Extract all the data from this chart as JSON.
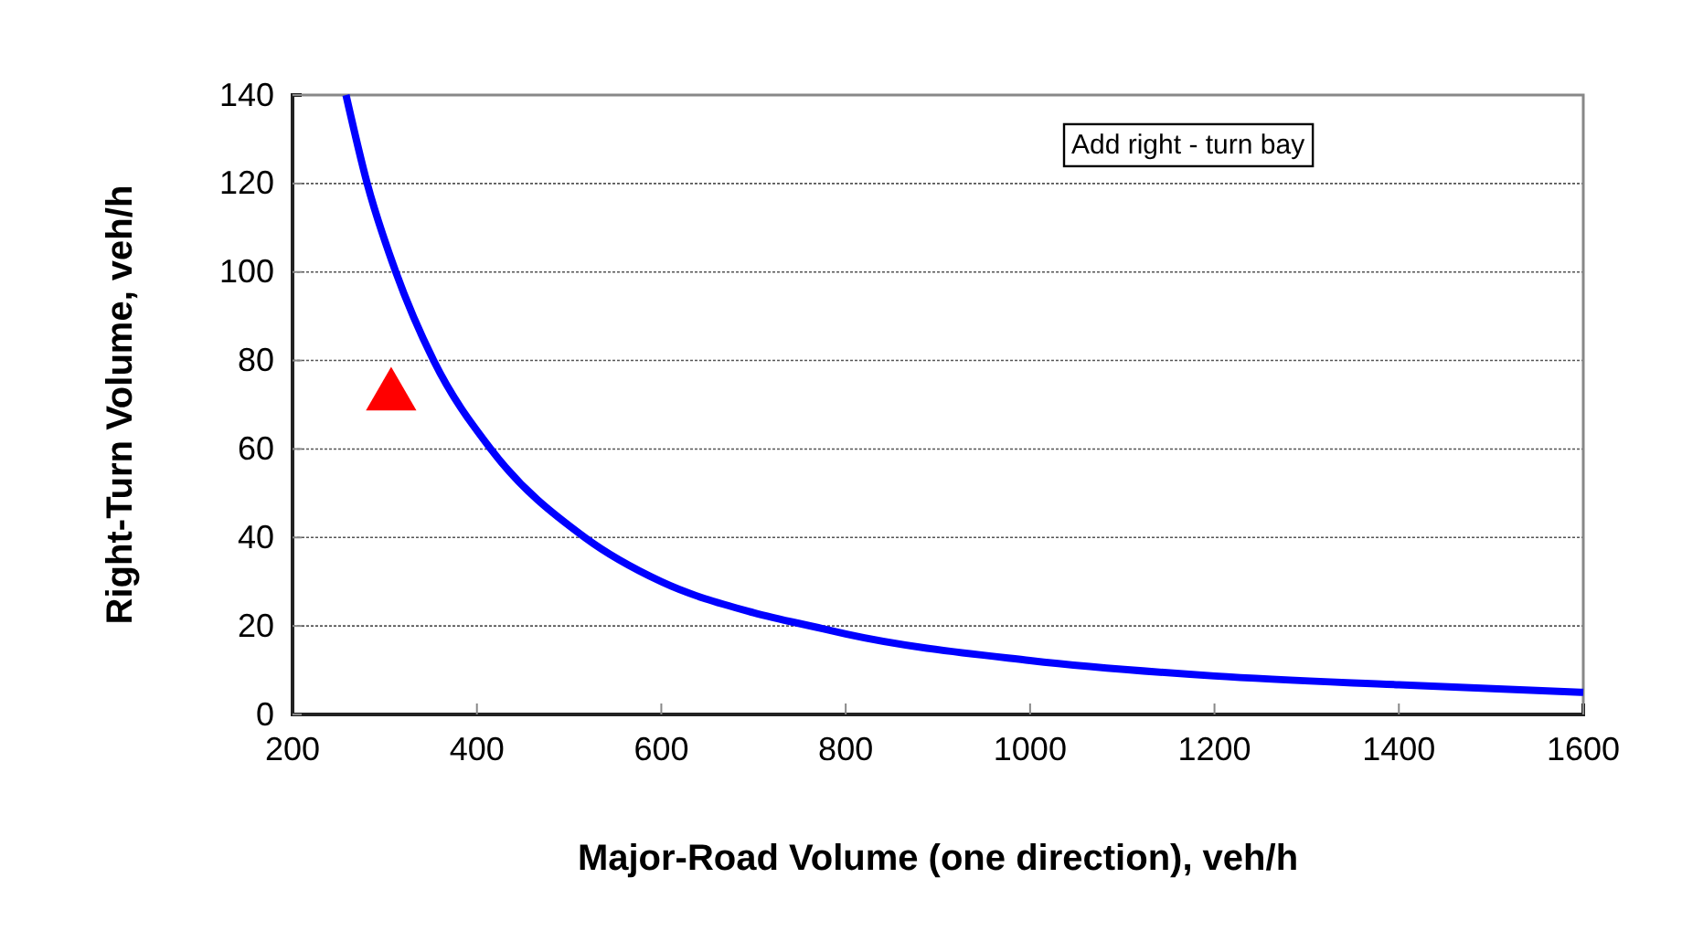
{
  "chart_data": {
    "type": "line",
    "xlabel": "Major-Road Volume (one direction), veh/h",
    "ylabel": "Right-Turn Volume, veh/h",
    "xlim": [
      200,
      1600
    ],
    "xticks": [
      200,
      400,
      600,
      800,
      1000,
      1200,
      1400,
      1600
    ],
    "ylim": [
      0,
      140
    ],
    "yticks": [
      0,
      20,
      40,
      60,
      80,
      100,
      120,
      140
    ],
    "grid": "y",
    "annotations": [
      "Add right - turn bay"
    ],
    "series": [
      {
        "color": "#0000ff",
        "marker": "none",
        "line_style": "solid",
        "x": [
          258,
          281,
          312,
          353,
          415,
          517,
          600,
          700,
          775,
          800,
          1000,
          1200,
          1400,
          1600
        ],
        "values": [
          140,
          120,
          100,
          80,
          60,
          40,
          30,
          23,
          19.4,
          18.2,
          12.2,
          8.7,
          6.7,
          5
        ]
      },
      {
        "type": "scatter",
        "color": "#ff0000",
        "marker": "triangle",
        "x": [
          307
        ],
        "values": [
          72
        ]
      }
    ]
  }
}
